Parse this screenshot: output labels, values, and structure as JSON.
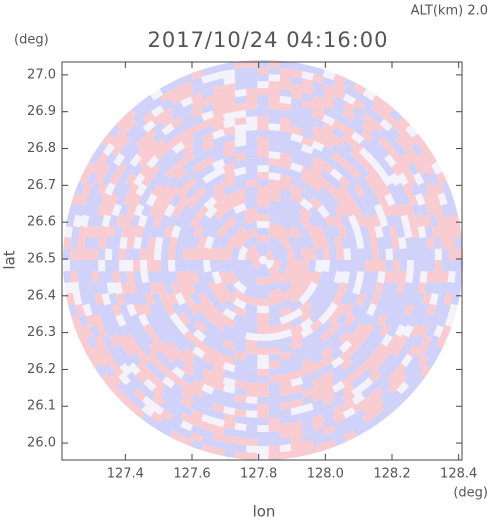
{
  "chart_data": {
    "type": "radar-ppi",
    "title": "2017/10/24 04:16:00",
    "subtitle": "ALT(km) 2.0",
    "xlabel": "lon",
    "ylabel": "lat",
    "xunit": "(deg)",
    "yunit": "(deg)",
    "xlim": [
      127.21,
      128.41
    ],
    "ylim": [
      25.954,
      27.035
    ],
    "xticks": [
      127.4,
      127.6,
      127.8,
      {
        "value": 128.0,
        "label": "128.0"
      },
      128.2,
      128.4
    ],
    "yticks": [
      {
        "value": 26.0,
        "label": "26.0"
      },
      26.1,
      26.2,
      26.3,
      26.4,
      26.5,
      26.6,
      26.7,
      26.8,
      26.9,
      {
        "value": 27.0,
        "label": "27.0"
      }
    ]
  }
}
